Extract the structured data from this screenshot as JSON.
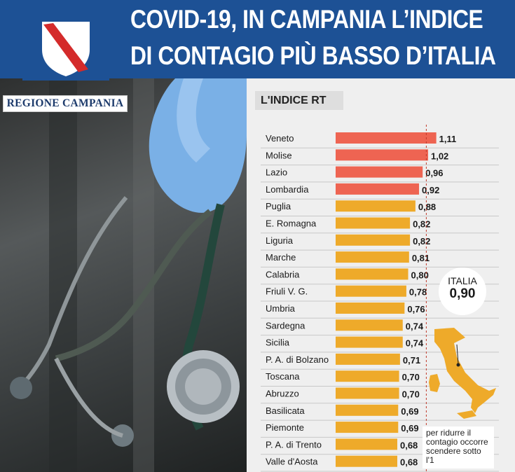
{
  "header": {
    "title_line1": "COVID-19, IN CAMPANIA L’INDICE",
    "title_line2": "DI CONTAGIO PIÙ BASSO D’ITALIA",
    "background_color": "#1d5195"
  },
  "logo": {
    "label": "REGIONE CAMPANIA",
    "emblem": "campania-shield-icon"
  },
  "photo": {
    "subject": "stethoscope-image"
  },
  "chart_label": "L'INDICE RT",
  "callout": {
    "name": "ITALIA",
    "value": "0,90"
  },
  "note": "per ridurre il contagio occorre scendere sotto l'1",
  "chart_data": {
    "type": "bar",
    "orientation": "horizontal",
    "title": "L'INDICE RT",
    "categories": [
      "Veneto",
      "Molise",
      "Lazio",
      "Lombardia",
      "Puglia",
      "E. Romagna",
      "Liguria",
      "Marche",
      "Calabria",
      "Friuli V. G.",
      "Umbria",
      "Sardegna",
      "Sicilia",
      "P. A. di Bolzano",
      "Toscana",
      "Abruzzo",
      "Basilicata",
      "Piemonte",
      "P. A. di Trento",
      "Valle d'Aosta"
    ],
    "values": [
      1.11,
      1.02,
      0.96,
      0.92,
      0.88,
      0.82,
      0.82,
      0.81,
      0.8,
      0.78,
      0.76,
      0.74,
      0.74,
      0.71,
      0.7,
      0.7,
      0.69,
      0.69,
      0.68,
      0.68
    ],
    "value_labels": [
      "1,11",
      "1,02",
      "0,96",
      "0,92",
      "0,88",
      "0,82",
      "0,82",
      "0,81",
      "0,80",
      "0,78",
      "0,76",
      "0,74",
      "0,74",
      "0,71",
      "0,70",
      "0,70",
      "0,69",
      "0,69",
      "0,68",
      "0,68"
    ],
    "reference_line": 1.0,
    "above_threshold_color": "#ee6452",
    "below_threshold_color": "#eeaa2a",
    "grid": false
  }
}
